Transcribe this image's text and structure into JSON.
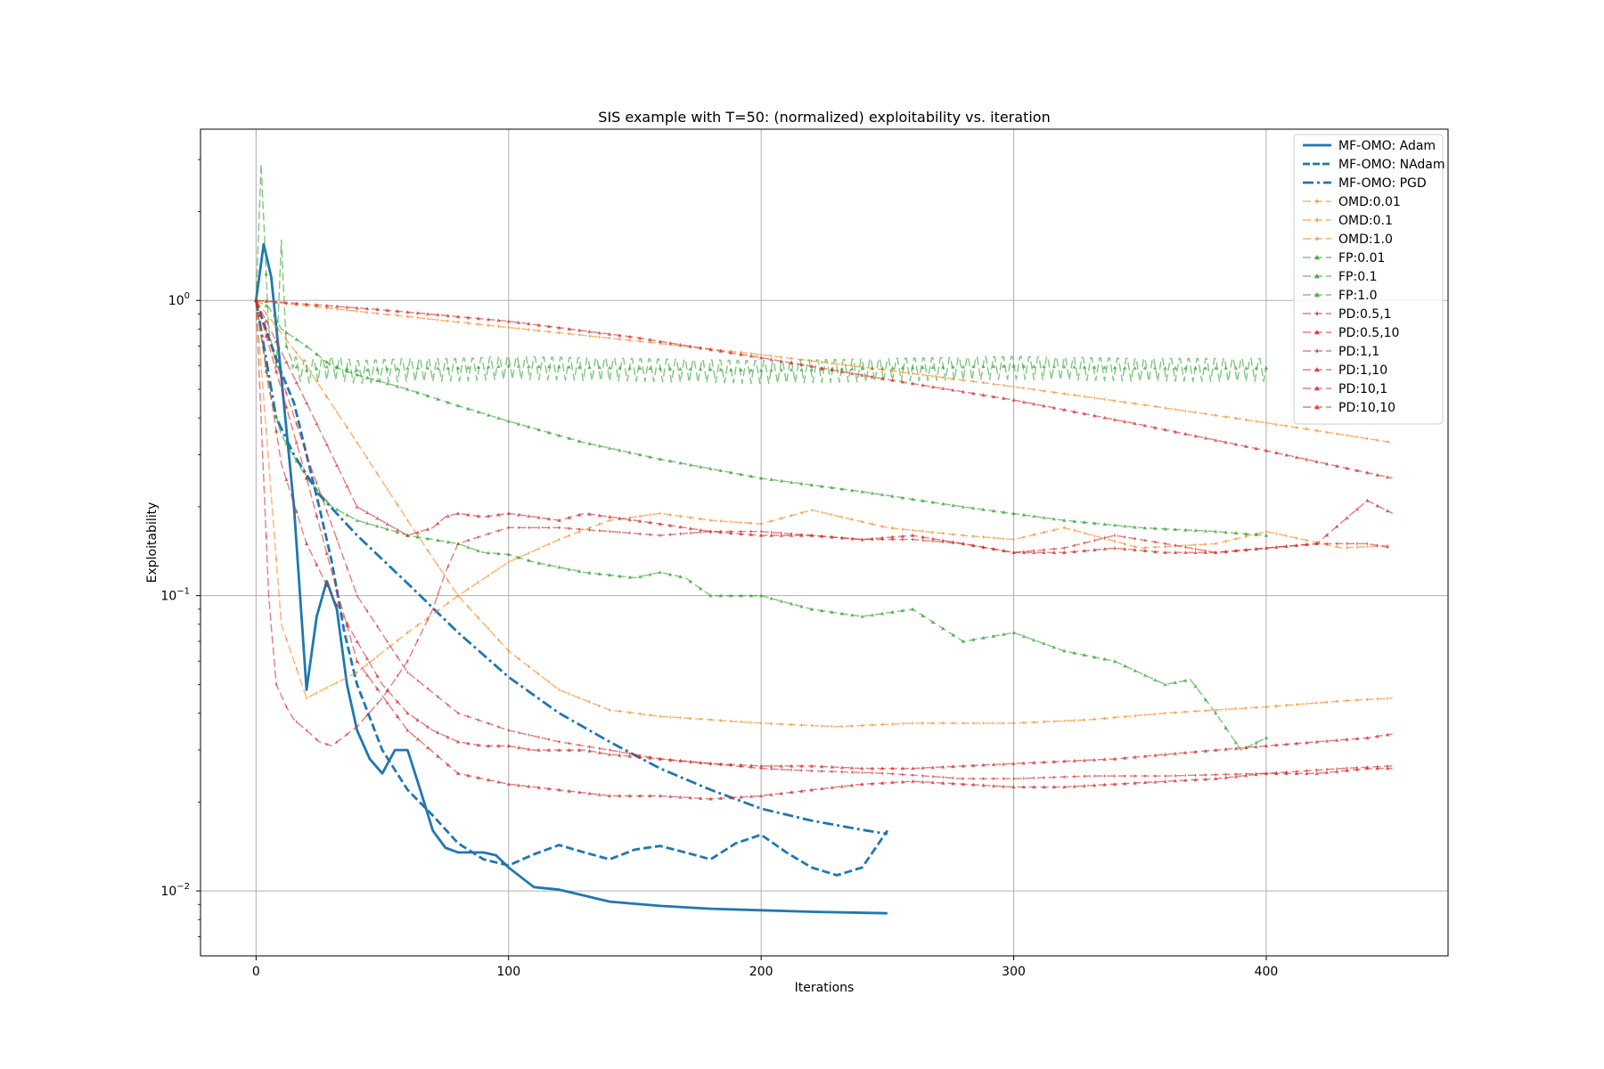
{
  "chart_data": {
    "type": "line",
    "title": "SIS example with T=50: (normalized) exploitability vs. iteration",
    "xlabel": "Iterations",
    "ylabel": "Exploitability",
    "xlim": [
      -22,
      472
    ],
    "ylim_log10": [
      -2.22,
      0.58
    ],
    "yscale": "log",
    "grid": true,
    "legend_position": "top-right",
    "x_ticks": [
      {
        "value": 0,
        "label": "0"
      },
      {
        "value": 100,
        "label": "100"
      },
      {
        "value": 200,
        "label": "200"
      },
      {
        "value": 300,
        "label": "300"
      },
      {
        "value": 400,
        "label": "400"
      }
    ],
    "y_ticks": [
      {
        "value": 0.01,
        "label": "10",
        "exp": "−2"
      },
      {
        "value": 0.1,
        "label": "10",
        "exp": "−1"
      },
      {
        "value": 1,
        "label": "10",
        "exp": "0"
      }
    ],
    "series": [
      {
        "name": "MF-OMO: Adam",
        "color": "#1f77b4",
        "style": "solid",
        "marker": "none",
        "x": [
          0,
          3,
          6,
          10,
          15,
          20,
          24,
          28,
          32,
          36,
          40,
          45,
          50,
          55,
          60,
          65,
          70,
          75,
          80,
          90,
          95,
          100,
          110,
          120,
          140,
          160,
          180,
          200,
          220,
          250
        ],
        "y": [
          1.0,
          1.55,
          1.2,
          0.55,
          0.2,
          0.048,
          0.085,
          0.112,
          0.09,
          0.05,
          0.035,
          0.028,
          0.025,
          0.03,
          0.03,
          0.022,
          0.016,
          0.014,
          0.0135,
          0.0135,
          0.0132,
          0.012,
          0.0103,
          0.0101,
          0.0092,
          0.0089,
          0.0087,
          0.0086,
          0.0085,
          0.0084
        ]
      },
      {
        "name": "MF-OMO: NAdam",
        "color": "#1f77b4",
        "style": "dashed",
        "marker": "none",
        "x": [
          0,
          5,
          10,
          15,
          20,
          25,
          30,
          35,
          40,
          50,
          60,
          70,
          80,
          90,
          100,
          110,
          120,
          130,
          140,
          150,
          160,
          170,
          180,
          190,
          200,
          210,
          220,
          230,
          240,
          250
        ],
        "y": [
          1.0,
          0.75,
          0.57,
          0.45,
          0.3,
          0.2,
          0.13,
          0.075,
          0.05,
          0.03,
          0.022,
          0.018,
          0.0145,
          0.0128,
          0.0122,
          0.0133,
          0.0143,
          0.0135,
          0.0128,
          0.0138,
          0.0142,
          0.0135,
          0.0128,
          0.0145,
          0.0155,
          0.0135,
          0.012,
          0.0113,
          0.012,
          0.016
        ]
      },
      {
        "name": "MF-OMO: PGD",
        "color": "#1f77b4",
        "style": "dashdot",
        "marker": "none",
        "x": [
          0,
          8,
          15,
          25,
          40,
          60,
          80,
          100,
          120,
          140,
          160,
          180,
          200,
          220,
          240,
          250
        ],
        "y": [
          1.0,
          0.4,
          0.3,
          0.22,
          0.16,
          0.11,
          0.075,
          0.053,
          0.04,
          0.032,
          0.026,
          0.022,
          0.019,
          0.0173,
          0.0161,
          0.0156
        ]
      },
      {
        "name": "OMD:0.01",
        "color": "#ff7f0e",
        "style": "dashed",
        "marker": "star",
        "x": [
          0,
          50,
          100,
          150,
          200,
          250,
          300,
          350,
          400,
          450
        ],
        "y": [
          1.0,
          0.9,
          0.81,
          0.73,
          0.655,
          0.58,
          0.51,
          0.445,
          0.385,
          0.33
        ]
      },
      {
        "name": "OMD:0.1",
        "color": "#ff7f0e",
        "style": "dashed",
        "marker": "star",
        "x": [
          0,
          20,
          40,
          60,
          80,
          100,
          120,
          140,
          160,
          180,
          200,
          230,
          260,
          300,
          330,
          360,
          400,
          430,
          450
        ],
        "y": [
          1.0,
          0.6,
          0.33,
          0.18,
          0.1,
          0.065,
          0.048,
          0.041,
          0.039,
          0.038,
          0.037,
          0.036,
          0.037,
          0.037,
          0.038,
          0.04,
          0.042,
          0.044,
          0.045
        ]
      },
      {
        "name": "OMD:1.0",
        "color": "#ff7f0e",
        "style": "dashed",
        "marker": "star",
        "x": [
          0,
          10,
          20,
          40,
          60,
          80,
          100,
          120,
          140,
          160,
          180,
          200,
          220,
          250,
          280,
          300,
          320,
          350,
          380,
          400,
          430,
          450
        ],
        "y": [
          1.0,
          0.08,
          0.045,
          0.055,
          0.075,
          0.1,
          0.13,
          0.155,
          0.18,
          0.19,
          0.18,
          0.175,
          0.195,
          0.17,
          0.16,
          0.155,
          0.17,
          0.145,
          0.15,
          0.165,
          0.145,
          0.148
        ]
      },
      {
        "name": "FP:0.01",
        "color": "#2ca02c",
        "style": "dashed",
        "marker": "triangle",
        "osc": 0.09,
        "x": [
          0,
          2,
          5,
          8,
          10,
          12,
          15,
          20,
          30,
          40,
          60,
          80,
          100,
          150,
          200,
          250,
          300,
          350,
          400
        ],
        "y": [
          1.0,
          2.9,
          0.8,
          0.6,
          1.6,
          0.7,
          0.6,
          0.58,
          0.6,
          0.58,
          0.59,
          0.59,
          0.6,
          0.59,
          0.58,
          0.59,
          0.6,
          0.59,
          0.59
        ]
      },
      {
        "name": "FP:0.1",
        "color": "#2ca02c",
        "style": "dashed",
        "marker": "triangle",
        "x": [
          0,
          5,
          10,
          20,
          30,
          40,
          60,
          80,
          100,
          130,
          160,
          200,
          240,
          280,
          320,
          350,
          380,
          400
        ],
        "y": [
          1.0,
          0.95,
          0.8,
          0.7,
          0.6,
          0.56,
          0.5,
          0.44,
          0.39,
          0.33,
          0.29,
          0.25,
          0.225,
          0.2,
          0.18,
          0.17,
          0.165,
          0.16
        ]
      },
      {
        "name": "FP:1.0",
        "color": "#2ca02c",
        "style": "dashed",
        "marker": "triangle",
        "x": [
          0,
          5,
          10,
          20,
          30,
          40,
          50,
          60,
          70,
          80,
          90,
          100,
          110,
          130,
          150,
          160,
          170,
          180,
          190,
          200,
          220,
          240,
          260,
          280,
          300,
          320,
          340,
          360,
          370,
          380,
          390,
          400
        ],
        "y": [
          1.0,
          0.5,
          0.35,
          0.25,
          0.2,
          0.18,
          0.17,
          0.16,
          0.155,
          0.15,
          0.14,
          0.138,
          0.13,
          0.12,
          0.115,
          0.12,
          0.115,
          0.1,
          0.1,
          0.1,
          0.09,
          0.085,
          0.09,
          0.07,
          0.075,
          0.065,
          0.06,
          0.05,
          0.052,
          0.04,
          0.03,
          0.033
        ]
      },
      {
        "name": "PD:0.5,1",
        "color": "#d62728",
        "style": "dashed",
        "marker": "star",
        "x": [
          0,
          20,
          40,
          60,
          80,
          100,
          120,
          140,
          160,
          180,
          200,
          220,
          250,
          280,
          300,
          330,
          360,
          400,
          430,
          450
        ],
        "y": [
          1.0,
          0.3,
          0.1,
          0.055,
          0.04,
          0.035,
          0.032,
          0.03,
          0.028,
          0.027,
          0.026,
          0.0255,
          0.025,
          0.024,
          0.024,
          0.0245,
          0.0245,
          0.025,
          0.026,
          0.0265
        ]
      },
      {
        "name": "PD:0.5,10",
        "color": "#d62728",
        "style": "dashed",
        "marker": "triangle",
        "x": [
          0,
          10,
          20,
          30,
          40,
          50,
          60,
          70,
          80,
          90,
          100,
          110,
          120,
          130,
          140,
          160,
          180,
          200,
          220,
          240,
          260,
          280,
          300,
          320,
          340,
          360,
          380,
          400,
          420,
          440,
          450
        ],
        "y": [
          1.0,
          0.28,
          0.15,
          0.1,
          0.07,
          0.05,
          0.04,
          0.035,
          0.032,
          0.031,
          0.031,
          0.03,
          0.03,
          0.03,
          0.029,
          0.028,
          0.027,
          0.0265,
          0.0265,
          0.026,
          0.026,
          0.0265,
          0.027,
          0.0275,
          0.028,
          0.029,
          0.03,
          0.031,
          0.032,
          0.033,
          0.034
        ]
      },
      {
        "name": "PD:1,1",
        "color": "#d62728",
        "style": "dashed",
        "marker": "star",
        "x": [
          0,
          5,
          8,
          12,
          15,
          20,
          25,
          30,
          40,
          50,
          60,
          70,
          75,
          80,
          90,
          100,
          120,
          140,
          160,
          180,
          200,
          220,
          240,
          260,
          280,
          300,
          320,
          340,
          360,
          380,
          400,
          420,
          440,
          450
        ],
        "y": [
          1.0,
          0.1,
          0.05,
          0.042,
          0.038,
          0.035,
          0.032,
          0.031,
          0.036,
          0.045,
          0.06,
          0.09,
          0.12,
          0.15,
          0.16,
          0.17,
          0.17,
          0.165,
          0.16,
          0.165,
          0.165,
          0.16,
          0.155,
          0.155,
          0.15,
          0.14,
          0.145,
          0.16,
          0.15,
          0.14,
          0.145,
          0.15,
          0.15,
          0.145
        ]
      },
      {
        "name": "PD:1,10",
        "color": "#d62728",
        "style": "dashed",
        "marker": "triangle",
        "x": [
          0,
          10,
          20,
          30,
          40,
          60,
          80,
          100,
          120,
          140,
          160,
          180,
          200,
          220,
          240,
          260,
          280,
          300,
          320,
          340,
          360,
          380,
          400,
          420,
          440,
          450
        ],
        "y": [
          1.0,
          0.5,
          0.25,
          0.12,
          0.06,
          0.035,
          0.025,
          0.023,
          0.022,
          0.021,
          0.021,
          0.0205,
          0.021,
          0.022,
          0.023,
          0.0235,
          0.023,
          0.0225,
          0.0225,
          0.023,
          0.0235,
          0.024,
          0.025,
          0.025,
          0.026,
          0.026
        ]
      },
      {
        "name": "PD:10,1",
        "color": "#d62728",
        "style": "dashed",
        "marker": "triangle",
        "x": [
          0,
          20,
          40,
          60,
          70,
          75,
          80,
          90,
          100,
          110,
          120,
          130,
          140,
          160,
          180,
          200,
          220,
          240,
          260,
          280,
          300,
          320,
          340,
          360,
          380,
          400,
          420,
          440,
          450
        ],
        "y": [
          1.0,
          0.45,
          0.2,
          0.16,
          0.17,
          0.185,
          0.19,
          0.185,
          0.19,
          0.185,
          0.18,
          0.19,
          0.185,
          0.175,
          0.165,
          0.16,
          0.16,
          0.155,
          0.16,
          0.15,
          0.14,
          0.14,
          0.145,
          0.14,
          0.14,
          0.145,
          0.15,
          0.21,
          0.19
        ]
      },
      {
        "name": "PD:10,10",
        "color": "#d62728",
        "style": "dashed",
        "marker": "triangle",
        "x": [
          0,
          50,
          100,
          150,
          200,
          250,
          300,
          350,
          400,
          450
        ],
        "y": [
          1.0,
          0.93,
          0.85,
          0.75,
          0.64,
          0.54,
          0.46,
          0.38,
          0.31,
          0.25
        ]
      }
    ]
  }
}
